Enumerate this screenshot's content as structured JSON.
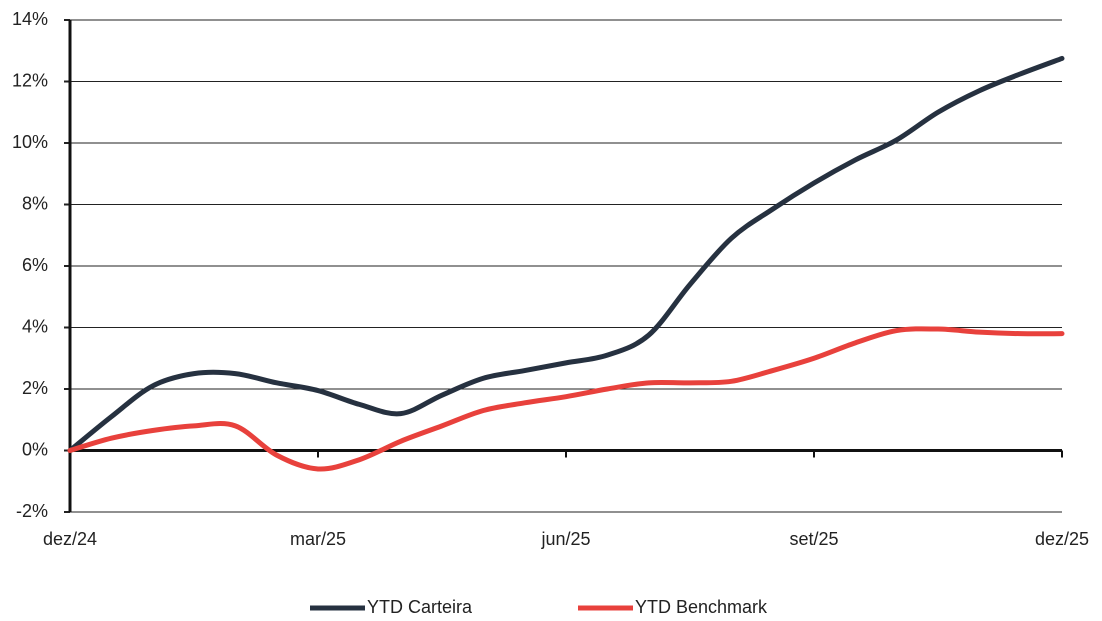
{
  "chart_data": {
    "type": "line",
    "categories": [
      "dez/24",
      null,
      null,
      null,
      null,
      null,
      "mar/25",
      null,
      null,
      null,
      null,
      null,
      "jun/25",
      null,
      null,
      null,
      null,
      null,
      "set/25",
      null,
      null,
      null,
      null,
      null,
      "dez/25"
    ],
    "series": [
      {
        "name": "YTD Carteira",
        "color": "#263140",
        "values": [
          0,
          1.1,
          2.1,
          2.5,
          2.5,
          2.2,
          1.95,
          1.5,
          1.2,
          1.8,
          2.35,
          2.6,
          2.85,
          3.1,
          3.75,
          5.4,
          6.9,
          7.85,
          8.7,
          9.45,
          10.1,
          11.0,
          11.7,
          12.25,
          12.75
        ]
      },
      {
        "name": "YTD Benchmark",
        "color": "#e8413c",
        "values": [
          0,
          0.4,
          0.65,
          0.8,
          0.8,
          -0.15,
          -0.6,
          -0.3,
          0.3,
          0.8,
          1.3,
          1.55,
          1.75,
          2.0,
          2.2,
          2.2,
          2.25,
          2.6,
          3.0,
          3.5,
          3.9,
          3.95,
          3.85,
          3.8,
          3.8
        ]
      }
    ],
    "ylim": [
      -2,
      14
    ],
    "yticks": [
      {
        "value": -2,
        "label": "-2%"
      },
      {
        "value": 0,
        "label": "0%"
      },
      {
        "value": 2,
        "label": "2%"
      },
      {
        "value": 4,
        "label": "4%"
      },
      {
        "value": 6,
        "label": "6%"
      },
      {
        "value": 8,
        "label": "8%"
      },
      {
        "value": 10,
        "label": "10%"
      },
      {
        "value": 12,
        "label": "12%"
      },
      {
        "value": 14,
        "label": "14%"
      }
    ],
    "grid": true,
    "legend": "bottom"
  }
}
